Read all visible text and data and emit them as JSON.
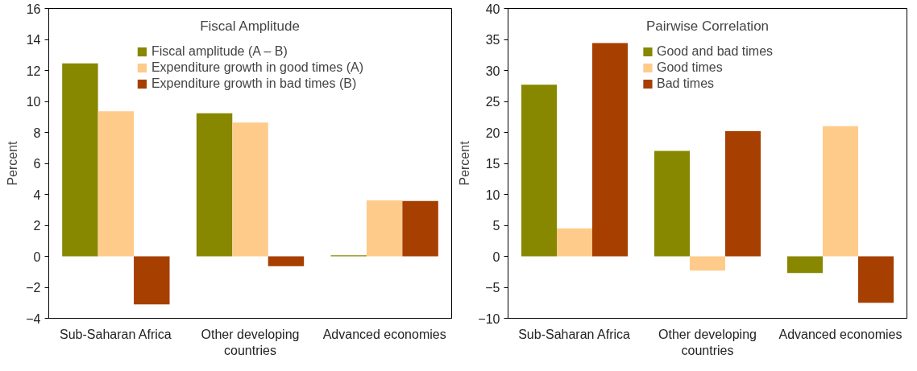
{
  "chart_data": [
    {
      "type": "bar",
      "title": "Fiscal Amplitude",
      "ylabel": "Percent",
      "categories": [
        "Sub-Saharan Africa",
        "Other developing countries",
        "Advanced economies"
      ],
      "series": [
        {
          "name": "Fiscal amplitude (A – B)",
          "color": "#878700",
          "values": [
            12.45,
            9.24,
            0.06
          ]
        },
        {
          "name": "Expenditure growth in good times (A)",
          "color": "#fecb8a",
          "values": [
            9.37,
            8.64,
            3.61
          ]
        },
        {
          "name": "Expenditure growth in bad times (B)",
          "color": "#a63f00",
          "values": [
            -3.11,
            -0.63,
            3.57
          ]
        }
      ],
      "ylim": [
        -4,
        16
      ],
      "yticks": [
        -4,
        -2,
        0,
        2,
        4,
        6,
        8,
        10,
        12,
        14,
        16
      ],
      "grid": false,
      "legend": "top"
    },
    {
      "type": "bar",
      "title": "Pairwise Correlation",
      "ylabel": "Percent",
      "categories": [
        "Sub-Saharan Africa",
        "Other developing countries",
        "Advanced economies"
      ],
      "series": [
        {
          "name": "Good and bad times",
          "color": "#878700",
          "values": [
            27.7,
            17.0,
            -2.7
          ]
        },
        {
          "name": "Good times",
          "color": "#fecb8a",
          "values": [
            4.5,
            -2.3,
            21.0
          ]
        },
        {
          "name": "Bad times",
          "color": "#a63f00",
          "values": [
            34.4,
            20.2,
            -7.5
          ]
        }
      ],
      "ylim": [
        -10,
        40
      ],
      "yticks": [
        -10,
        -5,
        0,
        5,
        10,
        15,
        20,
        25,
        30,
        35,
        40
      ],
      "grid": false,
      "legend": "top"
    }
  ]
}
